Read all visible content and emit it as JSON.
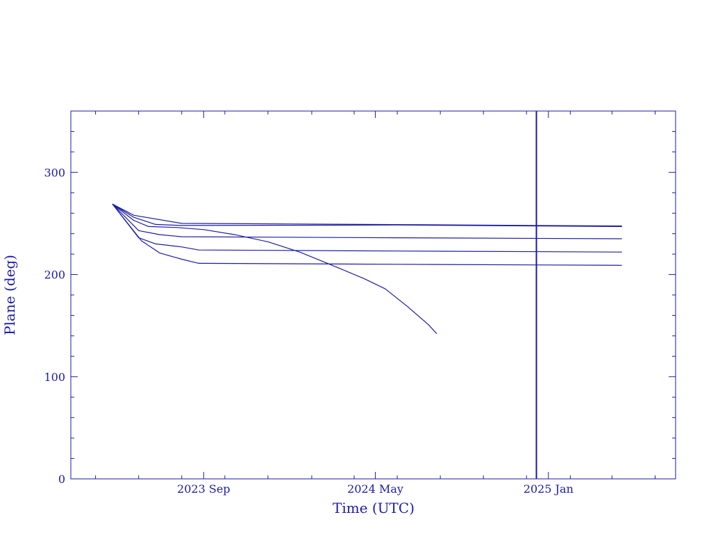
{
  "chart_data": {
    "type": "line",
    "title": "",
    "xlabel": "Time (UTC)",
    "ylabel": "Plane (deg)",
    "xlim": [
      "2023-02-25",
      "2025-06-30"
    ],
    "ylim": [
      0,
      360
    ],
    "x_ticks": [
      {
        "date": "2023-09-01",
        "label": "2023 Sep"
      },
      {
        "date": "2024-05-01",
        "label": "2024 May"
      },
      {
        "date": "2025-01-01",
        "label": "2025 Jan"
      }
    ],
    "y_ticks": [
      0,
      100,
      200,
      300
    ],
    "vertical_marker": {
      "date": "2024-12-15"
    },
    "line_color": "#1a1aa6",
    "series": [
      {
        "points": [
          [
            "2023-04-25",
            269
          ],
          [
            "2023-05-25",
            258
          ],
          [
            "2023-08-01",
            250
          ],
          [
            "2024-01-01",
            249.5
          ],
          [
            "2025-04-15",
            247.5
          ]
        ]
      },
      {
        "points": [
          [
            "2023-04-25",
            269
          ],
          [
            "2023-05-25",
            256
          ],
          [
            "2023-06-25",
            249
          ],
          [
            "2023-08-01",
            248
          ],
          [
            "2024-06-01",
            248.5
          ],
          [
            "2025-04-15",
            247
          ]
        ]
      },
      {
        "points": [
          [
            "2023-04-25",
            269
          ],
          [
            "2023-05-25",
            253
          ],
          [
            "2023-06-15",
            247
          ],
          [
            "2023-07-25",
            246
          ],
          [
            "2023-09-01",
            244
          ],
          [
            "2023-10-15",
            239
          ],
          [
            "2023-12-01",
            232
          ],
          [
            "2024-01-15",
            222
          ],
          [
            "2024-03-01",
            209
          ],
          [
            "2024-04-15",
            196
          ],
          [
            "2024-05-15",
            186
          ],
          [
            "2024-06-15",
            169
          ],
          [
            "2024-07-15",
            151
          ],
          [
            "2024-07-27",
            142
          ]
        ]
      },
      {
        "points": [
          [
            "2023-04-25",
            269
          ],
          [
            "2023-06-01",
            243
          ],
          [
            "2023-07-01",
            239
          ],
          [
            "2023-08-01",
            237
          ],
          [
            "2024-06-01",
            236
          ],
          [
            "2025-04-15",
            235
          ]
        ]
      },
      {
        "points": [
          [
            "2023-04-25",
            269
          ],
          [
            "2023-06-01",
            236
          ],
          [
            "2023-06-25",
            230
          ],
          [
            "2023-08-01",
            227
          ],
          [
            "2023-08-25",
            224
          ],
          [
            "2024-06-01",
            223
          ],
          [
            "2025-04-15",
            222
          ]
        ]
      },
      {
        "points": [
          [
            "2023-04-25",
            269
          ],
          [
            "2023-06-05",
            233
          ],
          [
            "2023-07-01",
            221
          ],
          [
            "2023-08-01",
            215
          ],
          [
            "2023-08-25",
            211
          ],
          [
            "2024-06-01",
            210
          ],
          [
            "2025-04-15",
            209
          ]
        ]
      }
    ],
    "grid": false,
    "legend": "none"
  }
}
